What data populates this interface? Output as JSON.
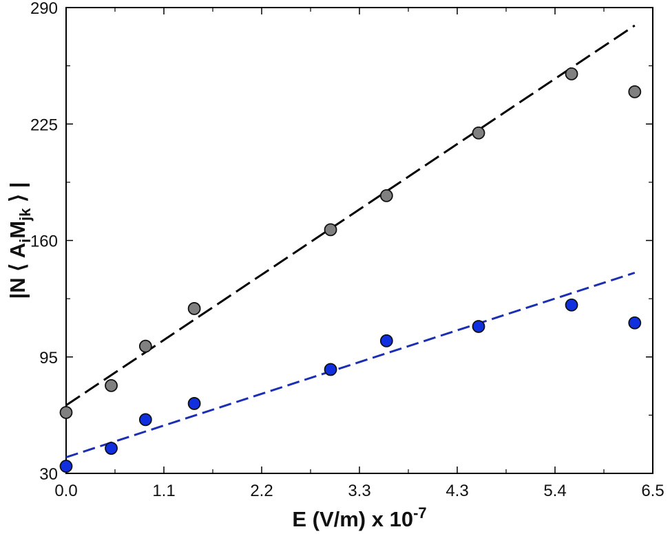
{
  "chart_data": {
    "type": "scatter",
    "title": "",
    "xlabel": {
      "main": "E (V/m) x 10",
      "exp": "-7"
    },
    "ylabel": {
      "parts": [
        "|N ⟨ A",
        "i",
        "M",
        "jk",
        " ⟩ |"
      ]
    },
    "xlim": [
      0,
      6.5
    ],
    "ylim": [
      30,
      290
    ],
    "x_ticks": [
      "0.0",
      "1.1",
      "2.2",
      "3.3",
      "4.3",
      "5.4",
      "6.5"
    ],
    "y_ticks": [
      "30",
      "95",
      "160",
      "225",
      "290"
    ],
    "grid": false,
    "series": [
      {
        "color": "#808080",
        "x": [
          0.0,
          0.5,
          0.88,
          1.42,
          2.93,
          3.55,
          4.57,
          5.6,
          6.3
        ],
        "y": [
          64,
          79,
          101,
          122,
          166,
          185,
          220,
          253,
          243
        ]
      },
      {
        "color": "#1030e0",
        "x": [
          0.0,
          0.5,
          0.88,
          1.42,
          2.93,
          3.55,
          4.57,
          5.6,
          6.3
        ],
        "y": [
          34,
          44,
          60,
          69,
          88,
          104,
          112,
          124,
          114
        ]
      }
    ],
    "fits": [
      {
        "color": "#000000",
        "x": [
          0,
          6.3
        ],
        "y": [
          68,
          280
        ]
      },
      {
        "color": "#1b2fb0",
        "x": [
          0,
          6.3
        ],
        "y": [
          39,
          142
        ]
      }
    ]
  }
}
